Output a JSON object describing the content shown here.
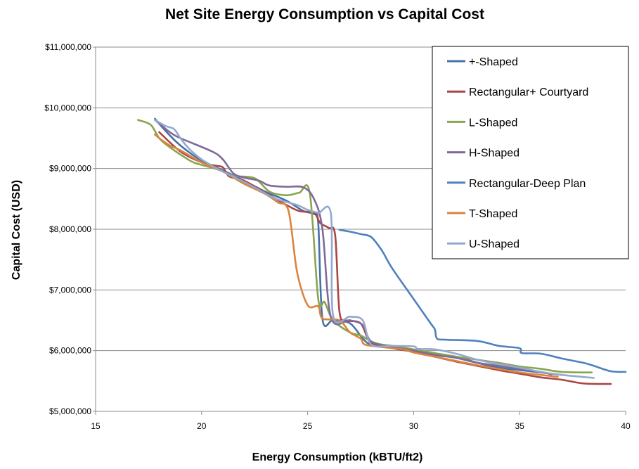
{
  "chart_data": {
    "type": "line",
    "title": "Net Site Energy Consumption vs Capital Cost",
    "xlabel": "Energy Consumption  (kBTU/ft2)",
    "ylabel": "Capital Cost  (USD)",
    "xlim": [
      15,
      40
    ],
    "ylim": [
      5000000,
      11000000
    ],
    "x_ticks": [
      15,
      20,
      25,
      30,
      35,
      40
    ],
    "x_tick_labels": [
      "15",
      "20",
      "25",
      "30",
      "35",
      "40"
    ],
    "y_ticks": [
      5000000,
      6000000,
      7000000,
      8000000,
      9000000,
      10000000,
      11000000
    ],
    "y_tick_labels": [
      "$5,000,000",
      "$6,000,000",
      "$7,000,000",
      "$8,000,000",
      "$9,000,000",
      "$10,000,000",
      "$11,000,000"
    ],
    "grid": "horizontal",
    "legend_position": "top-right",
    "series": [
      {
        "name": "+-Shaped",
        "color": "#4572A7",
        "points": [
          [
            17.8,
            9820000
          ],
          [
            18.3,
            9620000
          ],
          [
            19,
            9380000
          ],
          [
            20,
            9130000
          ],
          [
            21,
            8970000
          ],
          [
            22,
            8800000
          ],
          [
            23,
            8620000
          ],
          [
            24,
            8470000
          ],
          [
            24.8,
            8300000
          ],
          [
            25.3,
            8250000
          ],
          [
            25.5,
            8100000
          ],
          [
            25.7,
            6520000
          ],
          [
            26.2,
            6500000
          ],
          [
            27,
            6450000
          ],
          [
            27.6,
            6200000
          ],
          [
            28,
            6100000
          ],
          [
            29,
            6060000
          ],
          [
            30,
            6000000
          ],
          [
            31,
            5950000
          ],
          [
            32,
            5900000
          ],
          [
            33,
            5800000
          ],
          [
            34,
            5720000
          ],
          [
            35,
            5680000
          ],
          [
            36,
            5640000
          ],
          [
            37,
            5600000
          ]
        ]
      },
      {
        "name": "Rectangular+ Courtyard",
        "color": "#AA4643",
        "points": [
          [
            18,
            9600000
          ],
          [
            19,
            9280000
          ],
          [
            20,
            9100000
          ],
          [
            20.6,
            9050000
          ],
          [
            21,
            9020000
          ],
          [
            21.3,
            8870000
          ],
          [
            22,
            8800000
          ],
          [
            23,
            8600000
          ],
          [
            24,
            8400000
          ],
          [
            24.6,
            8300000
          ],
          [
            25.3,
            8270000
          ],
          [
            25.6,
            8100000
          ],
          [
            26,
            8020000
          ],
          [
            26.3,
            7900000
          ],
          [
            26.5,
            6650000
          ],
          [
            26.8,
            6500000
          ],
          [
            27.5,
            6450000
          ],
          [
            28,
            6120000
          ],
          [
            29,
            6040000
          ],
          [
            30,
            5980000
          ],
          [
            31,
            5900000
          ],
          [
            32,
            5820000
          ],
          [
            33,
            5750000
          ],
          [
            34,
            5680000
          ],
          [
            35,
            5620000
          ],
          [
            36,
            5560000
          ],
          [
            37,
            5520000
          ],
          [
            38,
            5460000
          ],
          [
            39.3,
            5450000
          ]
        ]
      },
      {
        "name": "L-Shaped",
        "color": "#89A54E",
        "points": [
          [
            17,
            9800000
          ],
          [
            17.6,
            9720000
          ],
          [
            18,
            9500000
          ],
          [
            18.5,
            9350000
          ],
          [
            19.5,
            9120000
          ],
          [
            20,
            9060000
          ],
          [
            20.8,
            8980000
          ],
          [
            21.5,
            8880000
          ],
          [
            22.5,
            8840000
          ],
          [
            23.2,
            8620000
          ],
          [
            24,
            8560000
          ],
          [
            24.6,
            8600000
          ],
          [
            25.1,
            8600000
          ],
          [
            25.5,
            6850000
          ],
          [
            25.8,
            6800000
          ],
          [
            26.2,
            6500000
          ],
          [
            27,
            6300000
          ],
          [
            27.5,
            6250000
          ],
          [
            28,
            6150000
          ],
          [
            28.5,
            6100000
          ],
          [
            29,
            6080000
          ],
          [
            30,
            6020000
          ],
          [
            31,
            5960000
          ],
          [
            32,
            5900000
          ],
          [
            33,
            5850000
          ],
          [
            34,
            5800000
          ],
          [
            35,
            5740000
          ],
          [
            36,
            5700000
          ],
          [
            37,
            5650000
          ],
          [
            38.4,
            5640000
          ]
        ]
      },
      {
        "name": "H-Shaped",
        "color": "#80699B",
        "points": [
          [
            17.8,
            9800000
          ],
          [
            18.5,
            9600000
          ],
          [
            19,
            9500000
          ],
          [
            20.5,
            9280000
          ],
          [
            21,
            9150000
          ],
          [
            21.5,
            8920000
          ],
          [
            22,
            8850000
          ],
          [
            22.7,
            8800000
          ],
          [
            23.2,
            8720000
          ],
          [
            24,
            8700000
          ],
          [
            24.8,
            8690000
          ],
          [
            25.3,
            8500000
          ],
          [
            25.7,
            8000000
          ],
          [
            26.1,
            6550000
          ],
          [
            27,
            6500000
          ],
          [
            27.6,
            6420000
          ],
          [
            28,
            6150000
          ],
          [
            29,
            6060000
          ],
          [
            30,
            6000000
          ],
          [
            31,
            5930000
          ],
          [
            32,
            5880000
          ],
          [
            33,
            5800000
          ],
          [
            34,
            5750000
          ],
          [
            35,
            5700000
          ],
          [
            36,
            5650000
          ],
          [
            36.5,
            5610000
          ]
        ]
      },
      {
        "name": "Rectangular-Deep  Plan",
        "color": "#4F81BD",
        "points": [
          [
            26.5,
            7990000
          ],
          [
            27,
            7960000
          ],
          [
            27.5,
            7920000
          ],
          [
            28,
            7870000
          ],
          [
            28.5,
            7650000
          ],
          [
            29,
            7350000
          ],
          [
            30,
            6850000
          ],
          [
            30.8,
            6450000
          ],
          [
            31,
            6350000
          ],
          [
            31.1,
            6200000
          ],
          [
            31.5,
            6180000
          ],
          [
            33,
            6160000
          ],
          [
            34,
            6080000
          ],
          [
            35,
            6040000
          ],
          [
            35.1,
            5960000
          ],
          [
            36,
            5950000
          ],
          [
            37,
            5870000
          ],
          [
            38,
            5800000
          ],
          [
            38.5,
            5750000
          ],
          [
            39.3,
            5660000
          ],
          [
            40,
            5650000
          ]
        ]
      },
      {
        "name": "T-Shaped",
        "color": "#DB843D",
        "points": [
          [
            17.8,
            9560000
          ],
          [
            18,
            9500000
          ],
          [
            18.5,
            9380000
          ],
          [
            19,
            9300000
          ],
          [
            20,
            9100000
          ],
          [
            21,
            8950000
          ],
          [
            22,
            8750000
          ],
          [
            23,
            8580000
          ],
          [
            23.6,
            8440000
          ],
          [
            24.1,
            8300000
          ],
          [
            24.5,
            7300000
          ],
          [
            25,
            6750000
          ],
          [
            25.5,
            6730000
          ],
          [
            25.7,
            6530000
          ],
          [
            26.5,
            6500000
          ],
          [
            27,
            6300000
          ],
          [
            27.5,
            6200000
          ],
          [
            27.7,
            6100000
          ],
          [
            28.5,
            6060000
          ],
          [
            29.5,
            6020000
          ],
          [
            30,
            5970000
          ],
          [
            31,
            5900000
          ],
          [
            32,
            5830000
          ],
          [
            33,
            5760000
          ],
          [
            34,
            5700000
          ],
          [
            35,
            5640000
          ],
          [
            36,
            5600000
          ],
          [
            36.8,
            5570000
          ]
        ]
      },
      {
        "name": "U-Shaped",
        "color": "#93A9CF",
        "points": [
          [
            17.8,
            9800000
          ],
          [
            18.3,
            9700000
          ],
          [
            18.7,
            9650000
          ],
          [
            19,
            9500000
          ],
          [
            19.4,
            9330000
          ],
          [
            20,
            9150000
          ],
          [
            21,
            8950000
          ],
          [
            22,
            8780000
          ],
          [
            22.8,
            8630000
          ],
          [
            23.5,
            8500000
          ],
          [
            24.5,
            8400000
          ],
          [
            25,
            8320000
          ],
          [
            25.5,
            8270000
          ],
          [
            26.1,
            8250000
          ],
          [
            26.2,
            6580000
          ],
          [
            27,
            6560000
          ],
          [
            27.6,
            6500000
          ],
          [
            28,
            6100000
          ],
          [
            29,
            6080000
          ],
          [
            30,
            6070000
          ],
          [
            30.2,
            6030000
          ],
          [
            31,
            6020000
          ],
          [
            32,
            5950000
          ],
          [
            33,
            5850000
          ],
          [
            34,
            5780000
          ],
          [
            35,
            5720000
          ],
          [
            36,
            5650000
          ],
          [
            37,
            5600000
          ],
          [
            38.5,
            5550000
          ]
        ]
      }
    ]
  }
}
